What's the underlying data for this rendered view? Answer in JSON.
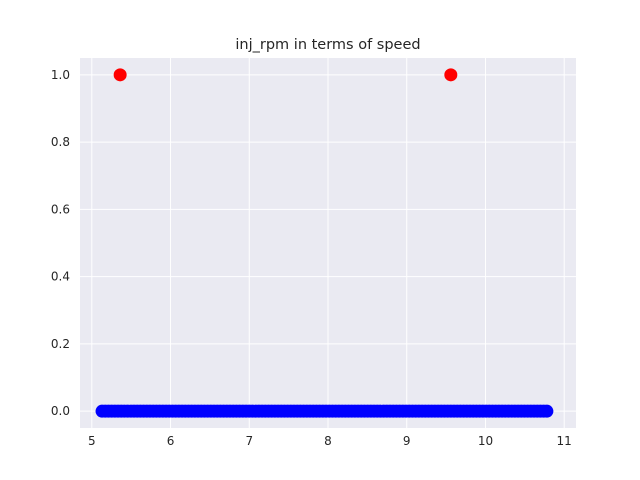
{
  "chart_data": {
    "type": "scatter",
    "title": "inj_rpm in terms of speed",
    "xlabel": "",
    "ylabel": "",
    "xlim": [
      4.85,
      11.15
    ],
    "ylim": [
      -0.05,
      1.05
    ],
    "xticks": [
      5,
      6,
      7,
      8,
      9,
      10,
      11
    ],
    "yticks": [
      0.0,
      0.2,
      0.4,
      0.6,
      0.8,
      1.0
    ],
    "ytick_labels": [
      "0.0",
      "0.2",
      "0.4",
      "0.6",
      "0.8",
      "1.0"
    ],
    "grid": true,
    "background": "#eaeaf2",
    "series": [
      {
        "color": "#0000ff",
        "x_range": [
          5.13,
          10.78
        ],
        "y": 0,
        "point_count": 140
      },
      {
        "color": "#ff0000",
        "points": [
          {
            "x": 5.36,
            "y": 1.0
          },
          {
            "x": 9.56,
            "y": 1.0
          }
        ]
      }
    ]
  }
}
